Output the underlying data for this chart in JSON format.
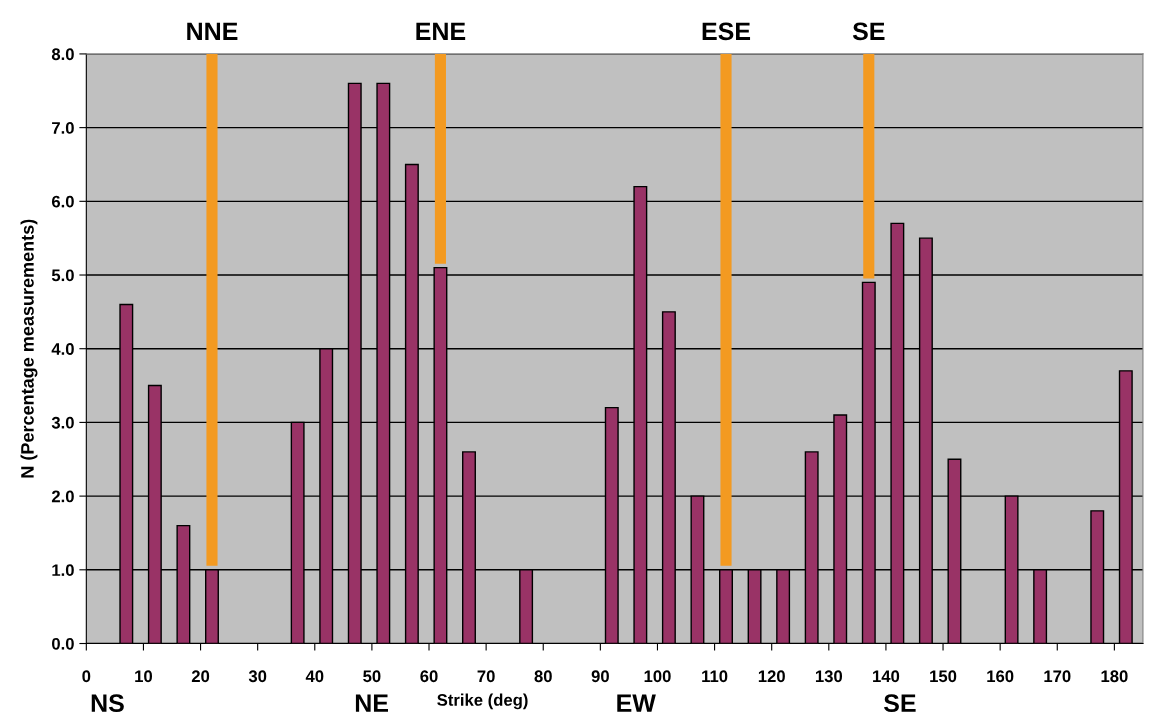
{
  "chart_data": {
    "type": "bar",
    "xlabel": "Strike (deg)",
    "ylabel": "N (Percentage measurements)",
    "x": [
      7,
      12,
      17,
      22,
      27,
      32,
      37,
      42,
      47,
      52,
      57,
      62,
      67,
      72,
      77,
      82,
      87,
      92,
      97,
      102,
      107,
      112,
      117,
      122,
      127,
      132,
      137,
      142,
      147,
      152,
      157,
      162,
      167,
      172,
      177,
      182
    ],
    "values": [
      4.6,
      3.5,
      1.6,
      1.0,
      null,
      null,
      3.0,
      4.0,
      7.6,
      7.6,
      6.5,
      5.1,
      2.6,
      null,
      1.0,
      null,
      null,
      3.2,
      6.2,
      4.5,
      2.0,
      1.0,
      1.0,
      1.0,
      2.6,
      3.1,
      4.9,
      5.7,
      5.5,
      2.5,
      null,
      2.0,
      1.0,
      null,
      1.8,
      3.7
    ],
    "color": "#993366",
    "xlim": [
      0,
      185
    ],
    "xticks": [
      0,
      10,
      20,
      30,
      40,
      50,
      60,
      70,
      80,
      90,
      100,
      110,
      120,
      130,
      140,
      150,
      160,
      170,
      180
    ],
    "ylim": [
      0,
      8
    ],
    "yticks": [
      {
        "value": 0,
        "label": "0.0"
      },
      {
        "value": 1,
        "label": "1.0"
      },
      {
        "value": 2,
        "label": "2.0"
      },
      {
        "value": 3,
        "label": "3.0"
      },
      {
        "value": 4,
        "label": "4.0"
      },
      {
        "value": 5,
        "label": "5.0"
      },
      {
        "value": 6,
        "label": "6.0"
      },
      {
        "value": 7,
        "label": "7.0"
      },
      {
        "value": 8,
        "label": "8.0"
      }
    ],
    "grid": "y",
    "annotations": [
      {
        "text": "NNE",
        "x": 22,
        "y": 1.0
      },
      {
        "text": "ENE",
        "x": 62,
        "y": 5.1
      },
      {
        "text": "ESE",
        "x": 112,
        "y": 1.0
      },
      {
        "text": "SE",
        "x": 137,
        "y": 4.9
      },
      "NS",
      "NE",
      "EW",
      "SE"
    ]
  }
}
